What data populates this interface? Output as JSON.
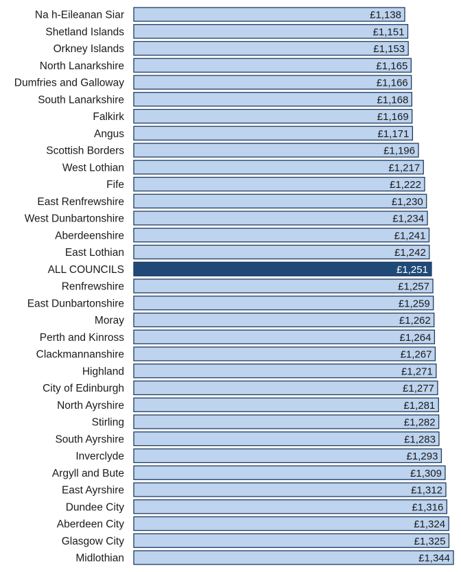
{
  "chart_data": {
    "type": "bar",
    "orientation": "horizontal",
    "title": "",
    "xlabel": "",
    "ylabel": "",
    "highlight_category": "ALL COUNCILS",
    "colors": {
      "bar": "#bdd3ee",
      "bar_border": "#1f3b60",
      "highlight": "#1f4a78"
    },
    "categories": [
      "Na h-Eileanan Siar",
      "Shetland Islands",
      "Orkney Islands",
      "North Lanarkshire",
      "Dumfries and Galloway",
      "South Lanarkshire",
      "Falkirk",
      "Angus",
      "Scottish Borders",
      "West Lothian",
      "Fife",
      "East Renfrewshire",
      "West Dunbartonshire",
      "Aberdeenshire",
      "East Lothian",
      "ALL COUNCILS",
      "Renfrewshire",
      "East Dunbartonshire",
      "Moray",
      "Perth and Kinross",
      "Clackmannanshire",
      "Highland",
      "City of Edinburgh",
      "North Ayrshire",
      "Stirling",
      "South Ayrshire",
      "Inverclyde",
      "Argyll and Bute",
      "East Ayrshire",
      "Dundee City",
      "Aberdeen City",
      "Glasgow City",
      "Midlothian"
    ],
    "values": [
      1138,
      1151,
      1153,
      1165,
      1166,
      1168,
      1169,
      1171,
      1196,
      1217,
      1222,
      1230,
      1234,
      1241,
      1242,
      1251,
      1257,
      1259,
      1262,
      1264,
      1267,
      1271,
      1277,
      1281,
      1282,
      1283,
      1293,
      1309,
      1312,
      1316,
      1324,
      1325,
      1344
    ],
    "value_labels": [
      "£1,138",
      "£1,151",
      "£1,153",
      "£1,165",
      "£1,166",
      "£1,168",
      "£1,169",
      "£1,171",
      "£1,196",
      "£1,217",
      "£1,222",
      "£1,230",
      "£1,234",
      "£1,241",
      "£1,242",
      "£1,251",
      "£1,257",
      "£1,259",
      "£1,262",
      "£1,264",
      "£1,267",
      "£1,271",
      "£1,277",
      "£1,281",
      "£1,282",
      "£1,283",
      "£1,293",
      "£1,309",
      "£1,312",
      "£1,316",
      "£1,324",
      "£1,325",
      "£1,344"
    ]
  }
}
